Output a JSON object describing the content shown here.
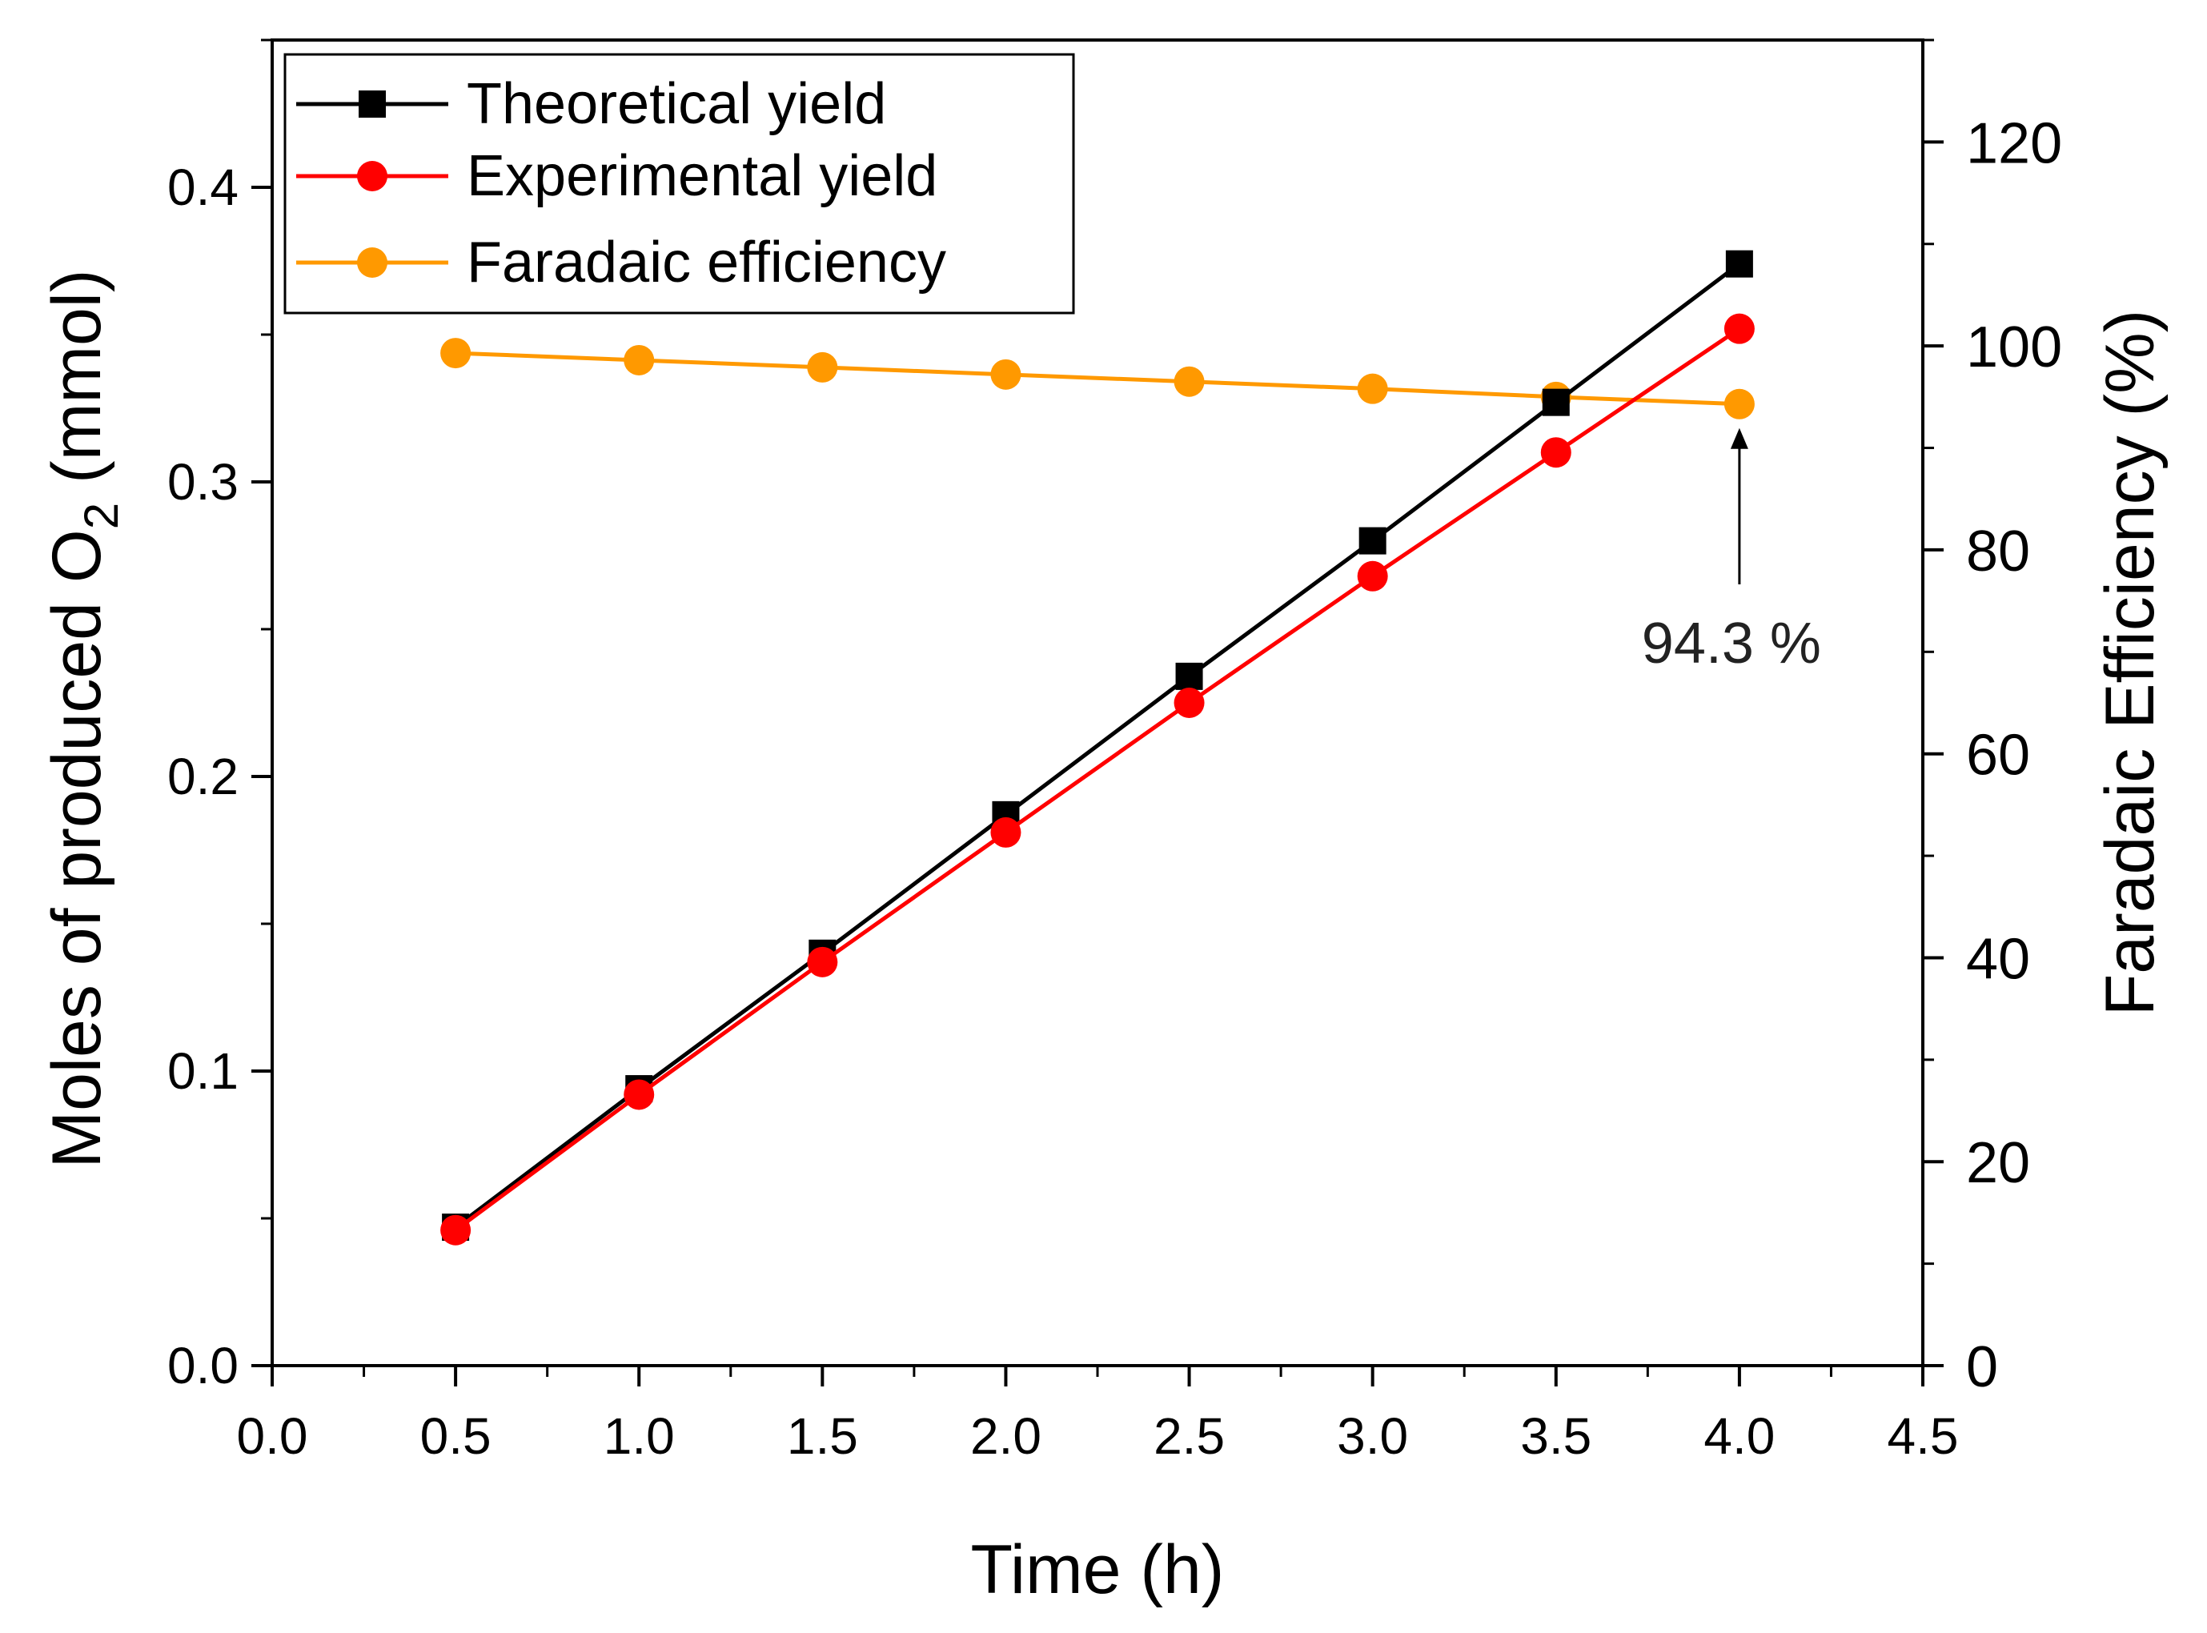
{
  "chart_data": {
    "type": "line",
    "title": "",
    "x": [
      0.5,
      1.0,
      1.5,
      2.0,
      2.5,
      3.0,
      3.5,
      4.0
    ],
    "xlabel": "Time (h)",
    "xlim": [
      0.0,
      4.5
    ],
    "xticks": [
      "0.0",
      "0.5",
      "1.0",
      "1.5",
      "2.0",
      "2.5",
      "3.0",
      "3.5",
      "4.0",
      "4.5"
    ],
    "ylabel_left": {
      "main": "Moles of produced O",
      "subscript": "2",
      "unit": " (mmol)"
    },
    "ylim_left": [
      0.0,
      0.45
    ],
    "yticks_left": [
      "0.0",
      "0.1",
      "0.2",
      "0.3",
      "0.4"
    ],
    "ylabel_right": "Faradaic Efficiency (%)",
    "ylim_right": [
      0,
      130
    ],
    "yticks_right": [
      "0",
      "20",
      "40",
      "60",
      "80",
      "100",
      "120"
    ],
    "series": [
      {
        "name": "Theoretical yield",
        "axis": "left",
        "marker": "square",
        "color": "#000000",
        "values": [
          0.047,
          0.094,
          0.14,
          0.187,
          0.234,
          0.28,
          0.327,
          0.374
        ]
      },
      {
        "name": "Experimental yield",
        "axis": "left",
        "marker": "circle",
        "color": "#ff0000",
        "values": [
          0.046,
          0.092,
          0.137,
          0.181,
          0.225,
          0.268,
          0.31,
          0.352
        ]
      },
      {
        "name": "Faradaic efficiency",
        "axis": "right",
        "marker": "circle",
        "color": "#ff9900",
        "values": [
          99.3,
          98.6,
          97.9,
          97.2,
          96.5,
          95.8,
          95.0,
          94.3
        ]
      }
    ],
    "annotation": {
      "text": "94.3 %",
      "x": 4.0,
      "y_right": 94.3
    },
    "legend_position": "top-left",
    "grid": false
  }
}
